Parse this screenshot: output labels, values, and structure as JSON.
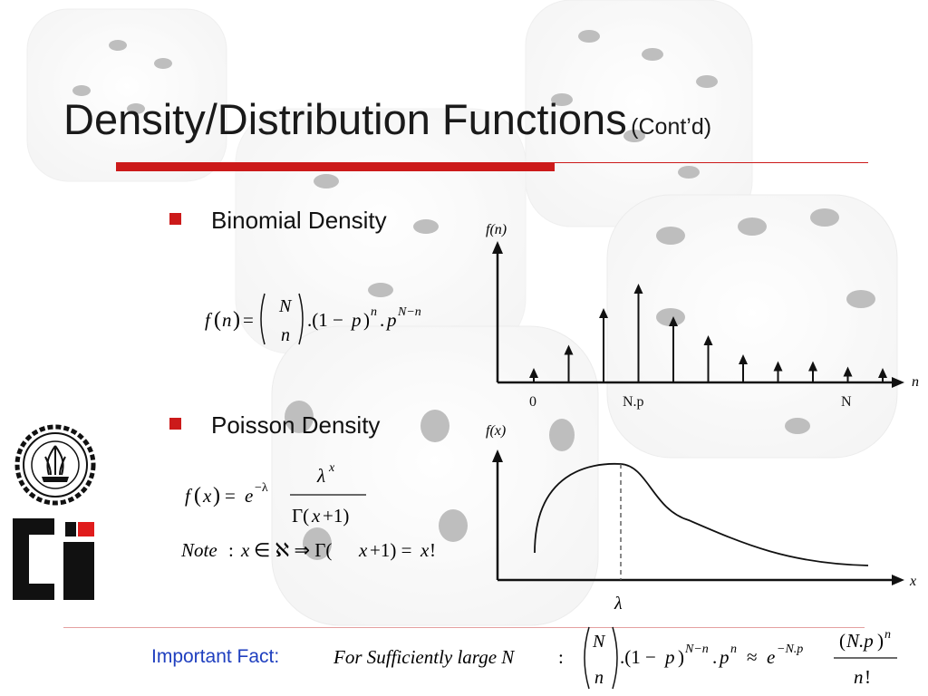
{
  "slide": {
    "title_main": "Density/Distribution Functions",
    "title_sub": "(Cont’d)"
  },
  "bullets": [
    {
      "label": "Binomial Density"
    },
    {
      "label": "Poisson Density"
    }
  ],
  "binomial_plot": {
    "y_label": "f(n)",
    "x_label": "n",
    "ticks": [
      "0",
      "N.p",
      "N"
    ],
    "stem_heights": [
      0.1,
      0.27,
      0.54,
      0.72,
      0.48,
      0.34,
      0.2,
      0.15,
      0.15,
      0.11,
      0.1
    ]
  },
  "poisson_plot": {
    "y_label": "f(x)",
    "x_label": "x",
    "peak_label": "λ"
  },
  "formulas": {
    "binomial": "f(n) = (N n).(1 − p)^n . p^(N−n)",
    "poisson": "f(x) = e^(−λ) λ^x / Γ(x+1)",
    "note": "Note : x ∈ ℵ ⇒ Γ(x+1) = x!",
    "fact": "For Sufficiently large N : (N n).(1 − p)^(N−n) . p^n ≈ e^(−N.p) (N.p)^n / n!"
  },
  "footer": {
    "fact_label": "Important Fact:"
  },
  "colors": {
    "accent": "#cc1a1a",
    "fact_label": "#1f3fbf"
  },
  "icons": [
    "university-seal-logo",
    "ci-logo"
  ]
}
